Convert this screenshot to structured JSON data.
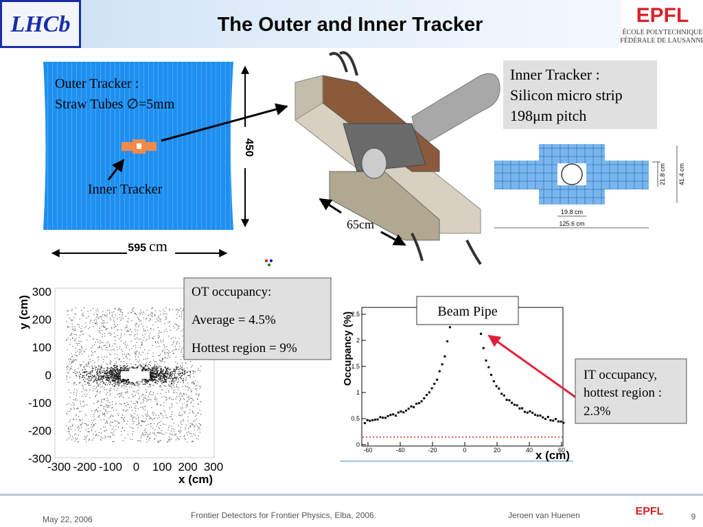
{
  "header": {
    "title": "The Outer and Inner Tracker",
    "logo_left": "LHCb",
    "logo_right": {
      "name": "EPFL",
      "subtitle_lines": [
        "ÉCOLE POLYTECHNIQUE",
        "FÉDÉRALE DE LAUSANNE"
      ]
    }
  },
  "outer_tracker_diagram": {
    "lines": [
      "Outer Tracker :",
      "Straw Tubes ∅=5mm"
    ],
    "inner_label": "Inner Tracker",
    "height_label": "450",
    "width_label": "595",
    "width_unit": "cm"
  },
  "detector": {
    "size_label": "65cm"
  },
  "inner_tracker_box": {
    "lines": [
      "Inner Tracker :",
      "Silicon micro strip",
      "198μm pitch"
    ]
  },
  "it_cross_section": {
    "height_inner": "21.8 cm",
    "height_outer": "41.4 cm",
    "width_inner": "19.8 cm",
    "width_outer": "125.6 cm"
  },
  "ot_plot": {
    "y_label": "y (cm)",
    "x_label": "x (cm)",
    "yticks": [
      "300",
      "200",
      "100",
      "0",
      "-100",
      "-200",
      "-300"
    ],
    "xticks": [
      "-300",
      "-200",
      "-100",
      "0",
      "100",
      "200",
      "300"
    ]
  },
  "ot_box": {
    "lines": [
      "OT occupancy:",
      "Average = 4.5%",
      "Hottest region = 9%"
    ]
  },
  "it_plot": {
    "y_label": "Occupancy (%)",
    "x_label": "x (cm)",
    "yticks": [
      "0",
      "0.5",
      "1",
      "1.5",
      "2",
      "2.5"
    ],
    "xticks": [
      "-60",
      "-40",
      "-20",
      "0",
      "20",
      "40",
      "60"
    ],
    "callout": "Beam Pipe"
  },
  "it_box": {
    "lines": [
      "IT occupancy,",
      "hottest region :",
      "2.3%"
    ]
  },
  "footer": {
    "date": "May 22, 2006",
    "event": "Frontier Detectors for Frontier Physics, Elba, 2006.",
    "author": "Jeroen van Huenen",
    "page": "9"
  }
}
